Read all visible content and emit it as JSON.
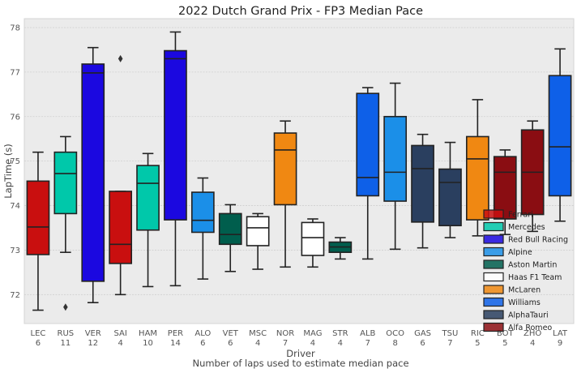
{
  "chart_data": {
    "type": "box",
    "title": "2022 Dutch Grand Prix - FP3 Median Pace",
    "xlabel": "Driver",
    "xlabel2": "Number of laps used to estimate median pace",
    "ylabel": "LapTime (s)",
    "ylim": [
      71.35,
      78.2
    ],
    "yticks": [
      72,
      73,
      74,
      75,
      76,
      77,
      78
    ],
    "grid": true,
    "legend_position": "lower-right",
    "background": "#ebebeb",
    "teams": [
      {
        "name": "Ferrari",
        "color": "#c90f0f"
      },
      {
        "name": "Mercedes",
        "color": "#00c8aa"
      },
      {
        "name": "Red Bull Racing",
        "color": "#1b08e0"
      },
      {
        "name": "Alpine",
        "color": "#1b8fe8"
      },
      {
        "name": "Aston Martin",
        "color": "#005e4d"
      },
      {
        "name": "Haas F1 Team",
        "color": "#ffffff"
      },
      {
        "name": "McLaren",
        "color": "#f08812"
      },
      {
        "name": "Williams",
        "color": "#0e60e8"
      },
      {
        "name": "AlphaTauri",
        "color": "#2a3f5f"
      },
      {
        "name": "Alfa Romeo",
        "color": "#8a0d12"
      }
    ],
    "drivers": [
      {
        "driver": "LEC",
        "laps": "6",
        "team": 0,
        "whisker_low": 71.65,
        "q1": 72.9,
        "median": 73.52,
        "q3": 74.55,
        "whisker_high": 75.2,
        "outliers": []
      },
      {
        "driver": "RUS",
        "laps": "11",
        "team": 1,
        "whisker_low": 72.95,
        "q1": 73.82,
        "median": 74.72,
        "q3": 75.2,
        "whisker_high": 75.55,
        "outliers": [
          71.72
        ]
      },
      {
        "driver": "VER",
        "laps": "12",
        "team": 2,
        "whisker_low": 71.82,
        "q1": 72.3,
        "median": 76.98,
        "q3": 77.18,
        "whisker_high": 77.55,
        "outliers": []
      },
      {
        "driver": "SAI",
        "laps": "4",
        "team": 0,
        "whisker_low": 72.0,
        "q1": 72.7,
        "median": 73.13,
        "q3": 74.32,
        "whisker_high": 74.32,
        "outliers": [
          77.3
        ]
      },
      {
        "driver": "HAM",
        "laps": "10",
        "team": 1,
        "whisker_low": 72.18,
        "q1": 73.45,
        "median": 74.5,
        "q3": 74.9,
        "whisker_high": 75.17,
        "outliers": []
      },
      {
        "driver": "PER",
        "laps": "14",
        "team": 2,
        "whisker_low": 72.2,
        "q1": 73.68,
        "median": 77.3,
        "q3": 77.48,
        "whisker_high": 77.9,
        "outliers": []
      },
      {
        "driver": "ALO",
        "laps": "6",
        "team": 3,
        "whisker_low": 72.35,
        "q1": 73.4,
        "median": 73.67,
        "q3": 74.3,
        "whisker_high": 74.62,
        "outliers": []
      },
      {
        "driver": "VET",
        "laps": "6",
        "team": 4,
        "whisker_low": 72.52,
        "q1": 73.13,
        "median": 73.35,
        "q3": 73.82,
        "whisker_high": 74.02,
        "outliers": []
      },
      {
        "driver": "MSC",
        "laps": "4",
        "team": 5,
        "whisker_low": 72.57,
        "q1": 73.1,
        "median": 73.5,
        "q3": 73.75,
        "whisker_high": 73.82,
        "outliers": []
      },
      {
        "driver": "NOR",
        "laps": "7",
        "team": 6,
        "whisker_low": 72.62,
        "q1": 74.02,
        "median": 75.25,
        "q3": 75.63,
        "whisker_high": 75.9,
        "outliers": []
      },
      {
        "driver": "MAG",
        "laps": "4",
        "team": 5,
        "whisker_low": 72.62,
        "q1": 72.88,
        "median": 73.28,
        "q3": 73.62,
        "whisker_high": 73.7,
        "outliers": []
      },
      {
        "driver": "STR",
        "laps": "4",
        "team": 4,
        "whisker_low": 72.8,
        "q1": 72.95,
        "median": 73.07,
        "q3": 73.18,
        "whisker_high": 73.28,
        "outliers": []
      },
      {
        "driver": "ALB",
        "laps": "7",
        "team": 7,
        "whisker_low": 72.8,
        "q1": 74.22,
        "median": 74.63,
        "q3": 76.52,
        "whisker_high": 76.65,
        "outliers": []
      },
      {
        "driver": "OCO",
        "laps": "8",
        "team": 3,
        "whisker_low": 73.02,
        "q1": 74.1,
        "median": 74.75,
        "q3": 76.0,
        "whisker_high": 76.75,
        "outliers": []
      },
      {
        "driver": "GAS",
        "laps": "6",
        "team": 8,
        "whisker_low": 73.05,
        "q1": 73.63,
        "median": 74.83,
        "q3": 75.35,
        "whisker_high": 75.6,
        "outliers": []
      },
      {
        "driver": "TSU",
        "laps": "7",
        "team": 8,
        "whisker_low": 73.28,
        "q1": 73.55,
        "median": 74.52,
        "q3": 74.82,
        "whisker_high": 75.42,
        "outliers": []
      },
      {
        "driver": "RIC",
        "laps": "5",
        "team": 6,
        "whisker_low": 73.32,
        "q1": 73.68,
        "median": 75.05,
        "q3": 75.55,
        "whisker_high": 76.38,
        "outliers": []
      },
      {
        "driver": "BOT",
        "laps": "5",
        "team": 9,
        "whisker_low": 73.35,
        "q1": 73.7,
        "median": 74.75,
        "q3": 75.1,
        "whisker_high": 75.25,
        "outliers": []
      },
      {
        "driver": "ZHO",
        "laps": "4",
        "team": 9,
        "whisker_low": 73.42,
        "q1": 73.8,
        "median": 74.75,
        "q3": 75.7,
        "whisker_high": 75.9,
        "outliers": []
      },
      {
        "driver": "LAT",
        "laps": "9",
        "team": 7,
        "whisker_low": 73.65,
        "q1": 74.22,
        "median": 75.32,
        "q3": 76.92,
        "whisker_high": 77.52,
        "outliers": []
      }
    ]
  }
}
